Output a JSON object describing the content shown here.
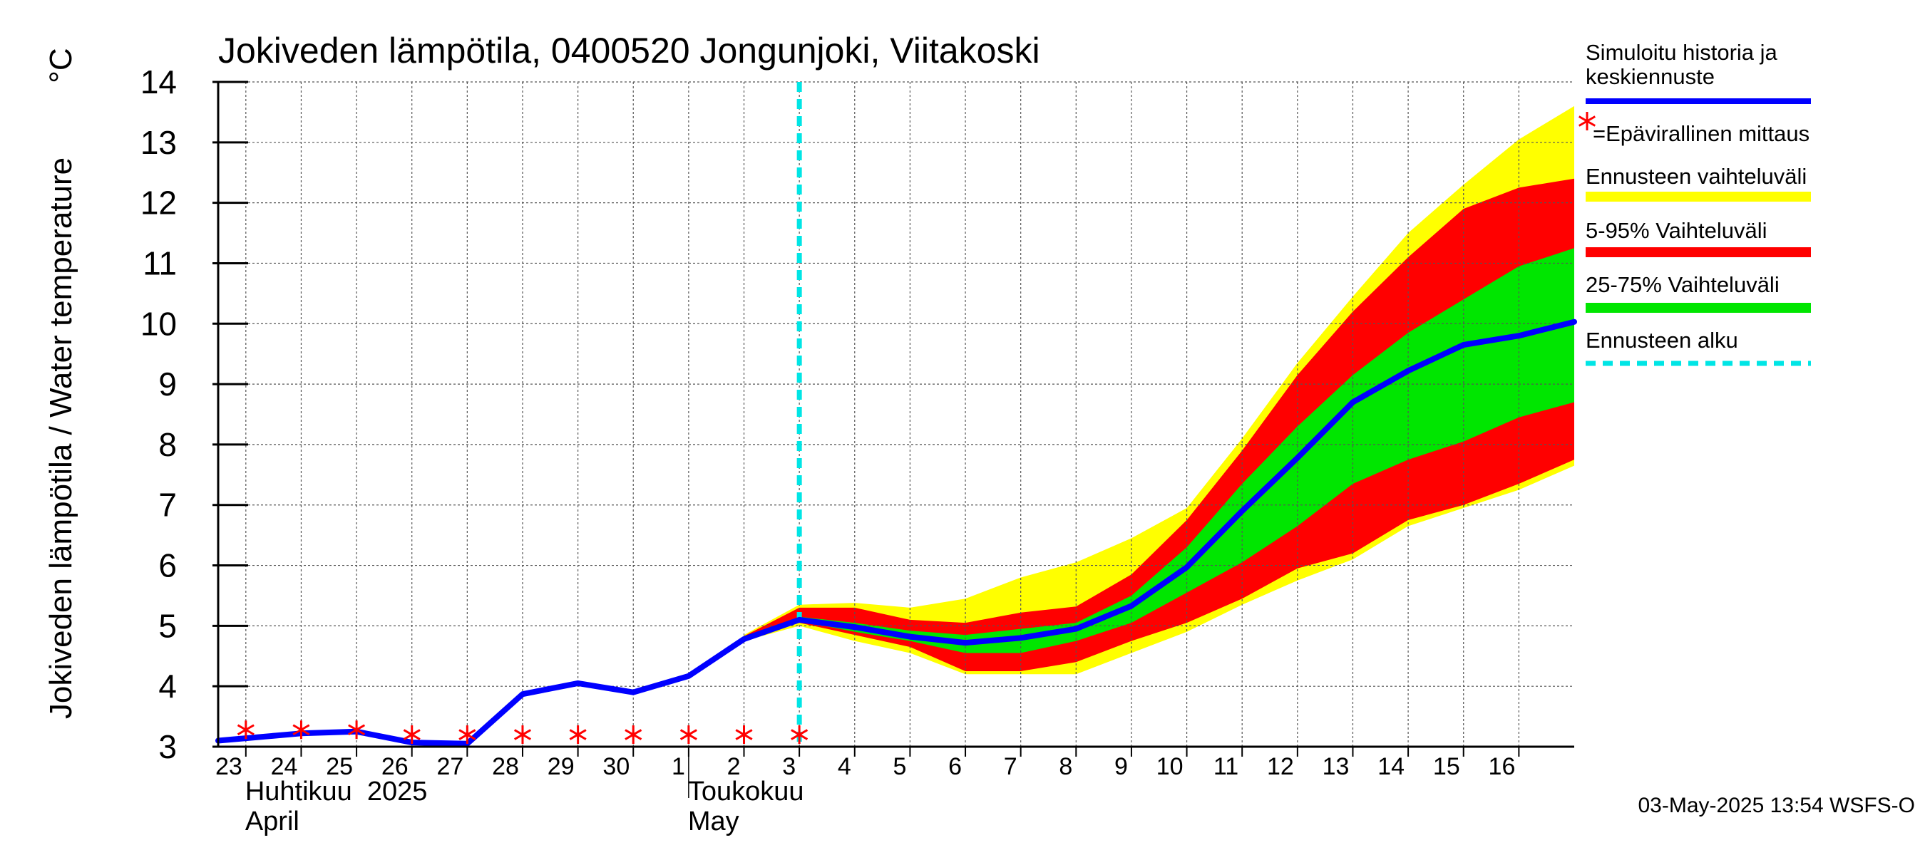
{
  "chart_data": {
    "type": "area",
    "title": "Jokiveden lämpötila, 0400520 Jongunjoki, Viitakoski",
    "ylabel": "Jokiveden lämpötila / Water temperature",
    "yunit": "°C",
    "ylim": [
      3,
      14
    ],
    "yticks": [
      "3",
      "4",
      "5",
      "6",
      "7",
      "8",
      "9",
      "10",
      "11",
      "12",
      "13",
      "14"
    ],
    "xlim": [
      "2025-04-22T12:00",
      "2025-05-17T00:00"
    ],
    "x_ticks": [
      {
        "date": "2025-04-23",
        "label": "23"
      },
      {
        "date": "2025-04-24",
        "label": "24"
      },
      {
        "date": "2025-04-25",
        "label": "25"
      },
      {
        "date": "2025-04-26",
        "label": "26"
      },
      {
        "date": "2025-04-27",
        "label": "27"
      },
      {
        "date": "2025-04-28",
        "label": "28"
      },
      {
        "date": "2025-04-29",
        "label": "29"
      },
      {
        "date": "2025-04-30",
        "label": "30"
      },
      {
        "date": "2025-05-01",
        "label": "1"
      },
      {
        "date": "2025-05-02",
        "label": "2"
      },
      {
        "date": "2025-05-03",
        "label": "3"
      },
      {
        "date": "2025-05-04",
        "label": "4"
      },
      {
        "date": "2025-05-05",
        "label": "5"
      },
      {
        "date": "2025-05-06",
        "label": "6"
      },
      {
        "date": "2025-05-07",
        "label": "7"
      },
      {
        "date": "2025-05-08",
        "label": "8"
      },
      {
        "date": "2025-05-09",
        "label": "9"
      },
      {
        "date": "2025-05-10",
        "label": "10"
      },
      {
        "date": "2025-05-11",
        "label": "11"
      },
      {
        "date": "2025-05-12",
        "label": "12"
      },
      {
        "date": "2025-05-13",
        "label": "13"
      },
      {
        "date": "2025-05-14",
        "label": "14"
      },
      {
        "date": "2025-05-15",
        "label": "15"
      },
      {
        "date": "2025-05-16",
        "label": "16"
      }
    ],
    "month_labels": [
      {
        "date": "2025-04-23",
        "fi": "Huhtikuu  2025",
        "en": "April"
      },
      {
        "date": "2025-05-01",
        "fi": "Toukokuu",
        "en": "May"
      }
    ],
    "month_boundary": "2025-05-01",
    "forecast_start": "2025-05-03",
    "grid": true,
    "legend_position": "right",
    "series": [
      {
        "name": "Simuloitu historia ja keskiennuste",
        "kind": "line",
        "color": "#0000ff",
        "points": [
          [
            "2025-04-22T12:00",
            3.1
          ],
          [
            "2025-04-23",
            3.14
          ],
          [
            "2025-04-24",
            3.22
          ],
          [
            "2025-04-25",
            3.25
          ],
          [
            "2025-04-26",
            3.07
          ],
          [
            "2025-04-27",
            3.05
          ],
          [
            "2025-04-28",
            3.87
          ],
          [
            "2025-04-29",
            4.05
          ],
          [
            "2025-04-30",
            3.9
          ],
          [
            "2025-05-01",
            4.17
          ],
          [
            "2025-05-02",
            4.78
          ],
          [
            "2025-05-03",
            5.1
          ],
          [
            "2025-05-04",
            4.98
          ],
          [
            "2025-05-05",
            4.82
          ],
          [
            "2025-05-06",
            4.72
          ],
          [
            "2025-05-07",
            4.8
          ],
          [
            "2025-05-08",
            4.95
          ],
          [
            "2025-05-09",
            5.33
          ],
          [
            "2025-05-10",
            5.97
          ],
          [
            "2025-05-11",
            6.9
          ],
          [
            "2025-05-12",
            7.78
          ],
          [
            "2025-05-13",
            8.7
          ],
          [
            "2025-05-14",
            9.22
          ],
          [
            "2025-05-15",
            9.65
          ],
          [
            "2025-05-16",
            9.8
          ],
          [
            "2025-05-17",
            10.03
          ]
        ]
      },
      {
        "name": "=Epävirallinen mittaus",
        "kind": "marker",
        "color": "#ff0000",
        "points": [
          [
            "2025-04-23",
            3.28
          ],
          [
            "2025-04-24",
            3.28
          ],
          [
            "2025-04-25",
            3.28
          ],
          [
            "2025-04-26",
            3.2
          ],
          [
            "2025-04-27",
            3.2
          ],
          [
            "2025-04-28",
            3.2
          ],
          [
            "2025-04-29",
            3.2
          ],
          [
            "2025-04-30",
            3.2
          ],
          [
            "2025-05-01",
            3.2
          ],
          [
            "2025-05-02",
            3.2
          ],
          [
            "2025-05-03",
            3.2
          ]
        ]
      },
      {
        "name": "Ennusteen vaihteluväli",
        "kind": "band",
        "color": "#ffff00",
        "x": [
          "2025-05-02",
          "2025-05-03",
          "2025-05-04",
          "2025-05-05",
          "2025-05-06",
          "2025-05-07",
          "2025-05-08",
          "2025-05-09",
          "2025-05-10",
          "2025-05-11",
          "2025-05-12",
          "2025-05-13",
          "2025-05-14",
          "2025-05-15",
          "2025-05-16",
          "2025-05-17"
        ],
        "upper": [
          4.85,
          5.35,
          5.38,
          5.3,
          5.45,
          5.8,
          6.05,
          6.45,
          6.95,
          8.1,
          9.35,
          10.45,
          11.5,
          12.3,
          13.05,
          13.6
        ],
        "lower": [
          4.75,
          5.0,
          4.75,
          4.55,
          4.2,
          4.2,
          4.2,
          4.55,
          4.9,
          5.35,
          5.75,
          6.1,
          6.65,
          6.95,
          7.25,
          7.65
        ]
      },
      {
        "name": "5-95% Vaihteluväli",
        "kind": "band",
        "color": "#ff0000",
        "x": [
          "2025-05-02",
          "2025-05-03",
          "2025-05-04",
          "2025-05-05",
          "2025-05-06",
          "2025-05-07",
          "2025-05-08",
          "2025-05-09",
          "2025-05-10",
          "2025-05-11",
          "2025-05-12",
          "2025-05-13",
          "2025-05-14",
          "2025-05-15",
          "2025-05-16",
          "2025-05-17"
        ],
        "upper": [
          4.83,
          5.3,
          5.3,
          5.1,
          5.05,
          5.22,
          5.32,
          5.85,
          6.75,
          7.9,
          9.15,
          10.2,
          11.1,
          11.9,
          12.25,
          12.4
        ],
        "lower": [
          4.77,
          5.05,
          4.85,
          4.65,
          4.25,
          4.25,
          4.4,
          4.75,
          5.05,
          5.45,
          5.95,
          6.2,
          6.75,
          7.0,
          7.35,
          7.75
        ]
      },
      {
        "name": "25-75% Vaihteluväli",
        "kind": "band",
        "color": "#00e600",
        "x": [
          "2025-05-02",
          "2025-05-03",
          "2025-05-04",
          "2025-05-05",
          "2025-05-06",
          "2025-05-07",
          "2025-05-08",
          "2025-05-09",
          "2025-05-10",
          "2025-05-11",
          "2025-05-12",
          "2025-05-13",
          "2025-05-14",
          "2025-05-15",
          "2025-05-16",
          "2025-05-17"
        ],
        "upper": [
          4.8,
          5.15,
          5.05,
          4.92,
          4.85,
          4.95,
          5.05,
          5.5,
          6.3,
          7.35,
          8.3,
          9.15,
          9.85,
          10.4,
          10.95,
          11.25
        ],
        "lower": [
          4.78,
          5.08,
          4.9,
          4.75,
          4.55,
          4.55,
          4.75,
          5.05,
          5.55,
          6.05,
          6.65,
          7.35,
          7.75,
          8.05,
          8.45,
          8.7
        ]
      },
      {
        "name": "Ennusteen alku",
        "kind": "vline",
        "color": "#00e5e5",
        "x": "2025-05-03"
      }
    ]
  },
  "legend": [
    {
      "label_lines": [
        "Simuloitu historia ja",
        "keskiennuste"
      ],
      "color": "#0000ff",
      "swatch": "line"
    },
    {
      "label_lines": [
        "=Epävirallinen mittaus"
      ],
      "color": "#ff0000",
      "swatch": "star"
    },
    {
      "label_lines": [
        "Ennusteen vaihteluväli"
      ],
      "color": "#ffff00",
      "swatch": "bar"
    },
    {
      "label_lines": [
        "5-95% Vaihteluväli"
      ],
      "color": "#ff0000",
      "swatch": "bar"
    },
    {
      "label_lines": [
        "25-75% Vaihteluväli"
      ],
      "color": "#00e600",
      "swatch": "bar"
    },
    {
      "label_lines": [
        "Ennusteen alku"
      ],
      "color": "#00e5e5",
      "swatch": "dashed"
    }
  ],
  "footer": "03-May-2025 13:54 WSFS-O"
}
